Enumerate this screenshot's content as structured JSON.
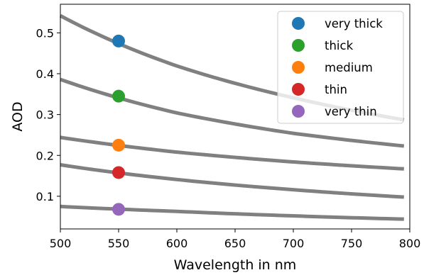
{
  "chart_data": {
    "type": "line",
    "xlabel": "Wavelength in nm",
    "ylabel": "AOD",
    "xlim": [
      500,
      800
    ],
    "ylim": [
      0.02,
      0.57
    ],
    "xticks": [
      500,
      550,
      600,
      650,
      700,
      750,
      800
    ],
    "yticks": [
      0.1,
      0.2,
      0.3,
      0.4,
      0.5
    ],
    "grid": false,
    "legend_position": "top-right",
    "curve_color": "#808080",
    "curve_x_range": [
      500,
      795
    ],
    "series": [
      {
        "name": "very thick",
        "color": "#1f77b4",
        "marker_x": 550,
        "marker_y": 0.48,
        "x": [
          500,
          600,
          700,
          795
        ],
        "y": [
          0.542,
          0.419,
          0.341,
          0.287
        ]
      },
      {
        "name": "thick",
        "color": "#2ca02c",
        "marker_x": 550,
        "marker_y": 0.345,
        "x": [
          500,
          600,
          700,
          795
        ],
        "y": [
          0.386,
          0.304,
          0.254,
          0.223
        ]
      },
      {
        "name": "medium",
        "color": "#ff7f0e",
        "marker_x": 550,
        "marker_y": 0.225,
        "x": [
          500,
          600,
          700,
          795
        ],
        "y": [
          0.244,
          0.208,
          0.184,
          0.167
        ]
      },
      {
        "name": "thin",
        "color": "#d62728",
        "marker_x": 550,
        "marker_y": 0.158,
        "x": [
          500,
          600,
          700,
          795
        ],
        "y": [
          0.177,
          0.141,
          0.116,
          0.098
        ]
      },
      {
        "name": "very thin",
        "color": "#9467bd",
        "marker_x": 550,
        "marker_y": 0.068,
        "x": [
          500,
          600,
          700,
          795
        ],
        "y": [
          0.075,
          0.063,
          0.052,
          0.044
        ]
      }
    ]
  }
}
